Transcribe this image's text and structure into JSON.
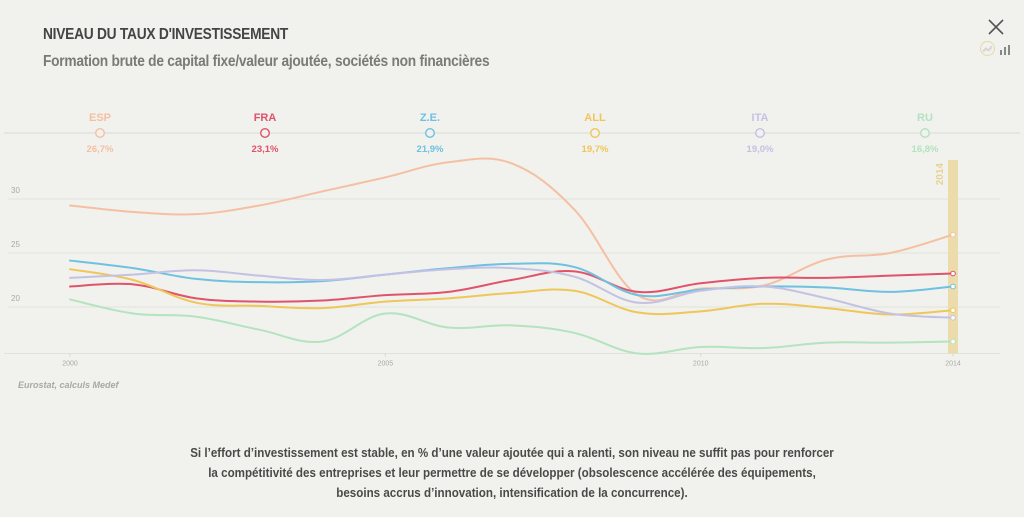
{
  "header": {
    "title": "NIVEAU DU TAUX D'INVESTISSEMENT",
    "subtitle": "Formation brute de capital fixe/valeur ajoutée, sociétés non financières"
  },
  "controls": {
    "close_icon": "close-icon",
    "line_view_icon": "line-chart-icon",
    "bar_view_icon": "bar-chart-icon"
  },
  "source": "Eurostat, calculs Medef",
  "caption": [
    "Si l’effort d’investissement est stable, en % d’une valeur ajoutée qui a ralenti, son niveau ne suffit pas pour renforcer",
    "la compétitivité des entreprises et leur permettre de se développer (obsolescence accélérée des équipements,",
    "besoins accrus d’innovation, intensification de la concurrence)."
  ],
  "chart_data": {
    "type": "line",
    "title": "NIVEAU DU TAUX D'INVESTISSEMENT",
    "subtitle": "Formation brute de capital fixe/valeur ajoutée, sociétés non financières",
    "xlabel": "",
    "ylabel": "",
    "x": [
      2000,
      2001,
      2002,
      2003,
      2004,
      2005,
      2006,
      2007,
      2008,
      2009,
      2010,
      2011,
      2012,
      2013,
      2014
    ],
    "x_ticks": [
      "2000",
      "2005",
      "2010",
      "2014"
    ],
    "y_ticks": [
      "20",
      "25",
      "30"
    ],
    "ylim": [
      15.7,
      34
    ],
    "grid": true,
    "highlight_year": "2014",
    "legend_placement": "top",
    "series": [
      {
        "name": "ESP",
        "color": "#f5c0a2",
        "label_value": "26,7%",
        "values": [
          29.4,
          28.8,
          28.6,
          29.4,
          30.7,
          32.0,
          33.4,
          33.3,
          29.0,
          21.1,
          21.7,
          22.0,
          24.4,
          25.0,
          26.7
        ]
      },
      {
        "name": "FRA",
        "color": "#e0536a",
        "label_value": "23,1%",
        "values": [
          21.9,
          22.1,
          20.8,
          20.5,
          20.6,
          21.1,
          21.4,
          22.5,
          23.3,
          21.4,
          22.2,
          22.7,
          22.7,
          22.9,
          23.1
        ]
      },
      {
        "name": "Z.E.",
        "color": "#6ec1e2",
        "label_value": "21,9%",
        "values": [
          24.3,
          23.6,
          22.6,
          22.3,
          22.4,
          23.0,
          23.6,
          24.0,
          23.7,
          21.1,
          21.6,
          21.9,
          21.8,
          21.4,
          21.9
        ]
      },
      {
        "name": "ALL",
        "color": "#efc65a",
        "label_value": "19,7%",
        "values": [
          23.5,
          22.5,
          20.4,
          20.1,
          19.9,
          20.5,
          20.8,
          21.3,
          21.5,
          19.5,
          19.6,
          20.3,
          19.9,
          19.3,
          19.7
        ]
      },
      {
        "name": "ITA",
        "color": "#c4c2e4",
        "label_value": "19,0%",
        "values": [
          22.7,
          23.0,
          23.4,
          22.9,
          22.5,
          23.0,
          23.5,
          23.6,
          22.8,
          20.4,
          21.5,
          21.9,
          20.8,
          19.4,
          19.0
        ]
      },
      {
        "name": "RU",
        "color": "#b3e3bf",
        "label_value": "16,8%",
        "values": [
          20.7,
          19.4,
          19.1,
          17.9,
          16.8,
          19.4,
          18.1,
          18.3,
          17.6,
          15.7,
          16.3,
          16.2,
          16.7,
          16.7,
          16.8
        ]
      }
    ]
  }
}
